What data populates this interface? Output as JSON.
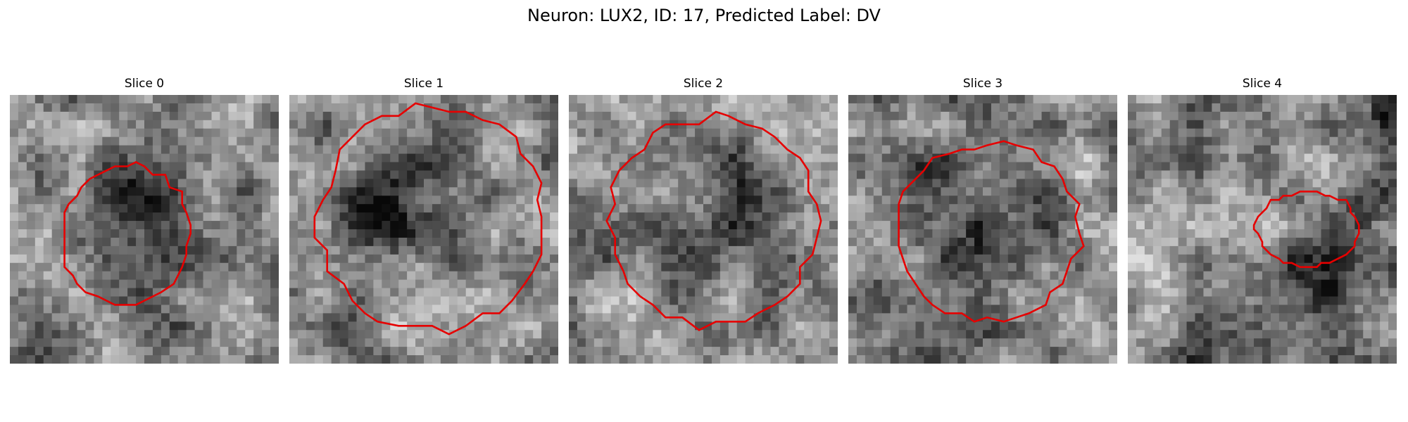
{
  "figure": {
    "title": "Neuron: LUX2, ID: 17, Predicted Label: DV"
  },
  "style": {
    "contour_color": "#e60000",
    "colormap": "grayscale"
  },
  "panels": [
    {
      "title": "Slice 0",
      "contour_size": "medium",
      "seed": 11
    },
    {
      "title": "Slice 1",
      "contour_size": "large",
      "seed": 23
    },
    {
      "title": "Slice 2",
      "contour_size": "large",
      "seed": 37
    },
    {
      "title": "Slice 3",
      "contour_size": "medium-large",
      "seed": 51
    },
    {
      "title": "Slice 4",
      "contour_size": "small",
      "seed": 67
    }
  ]
}
